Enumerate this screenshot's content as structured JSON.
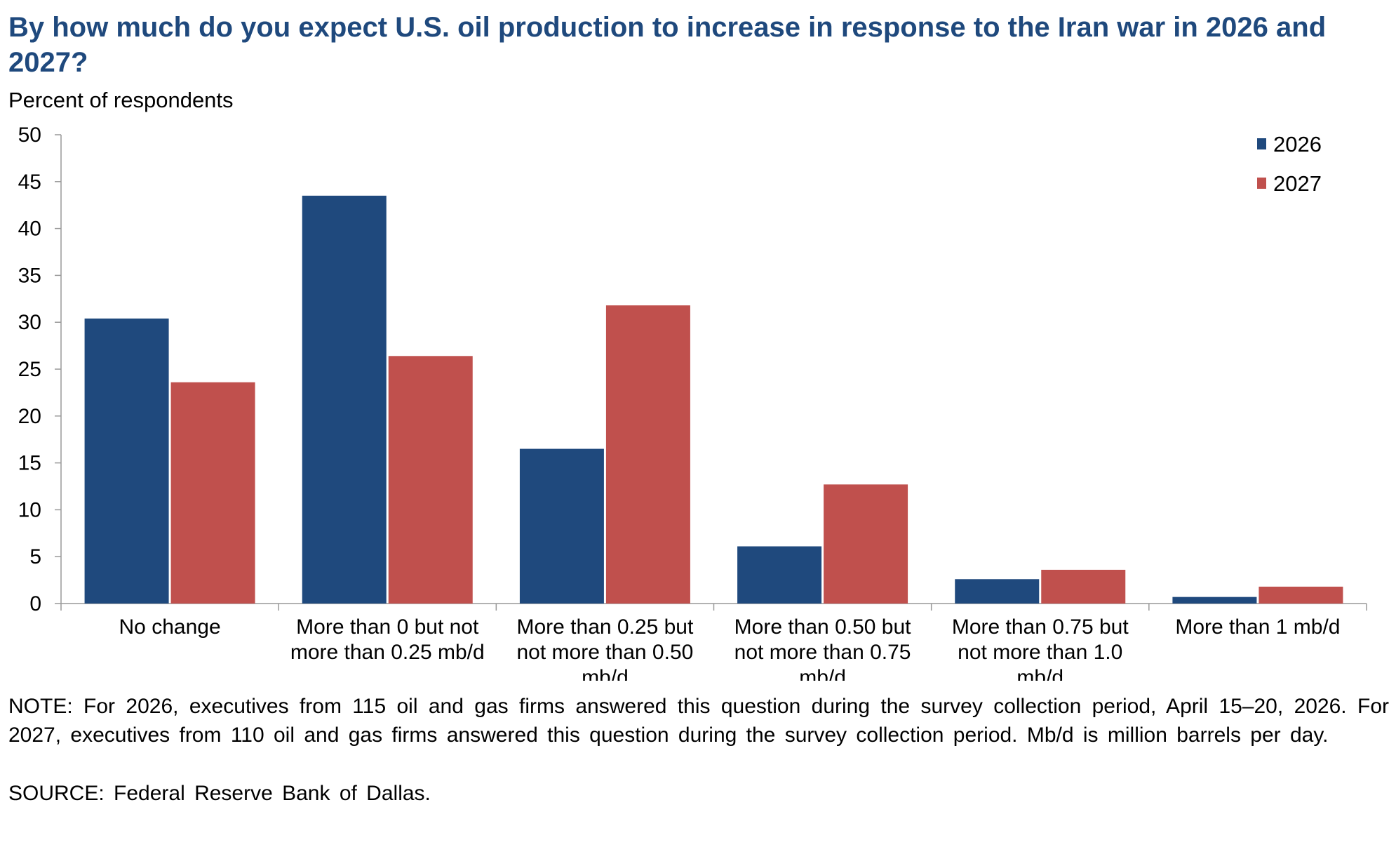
{
  "chart_data": {
    "type": "bar",
    "title": "By how much do you expect U.S. oil production to increase in response to the Iran war in 2026 and 2027?",
    "ylabel": "Percent of respondents",
    "xlabel": "",
    "ylim": [
      0,
      50
    ],
    "yticks": [
      0,
      5,
      10,
      15,
      20,
      25,
      30,
      35,
      40,
      45,
      50
    ],
    "grid": false,
    "legend_position": "top-right",
    "categories": [
      [
        "No change"
      ],
      [
        "More than 0 but not",
        "more than 0.25 mb/d"
      ],
      [
        "More than 0.25 but",
        "not more than 0.50",
        "mb/d"
      ],
      [
        "More than 0.50 but",
        "not more than 0.75",
        "mb/d"
      ],
      [
        "More than 0.75 but",
        "not more than 1.0",
        "mb/d"
      ],
      [
        "More than 1 mb/d"
      ]
    ],
    "series": [
      {
        "name": "2026",
        "color": "#1f497d",
        "values": [
          30.4,
          43.5,
          16.5,
          6.1,
          2.6,
          0.7
        ]
      },
      {
        "name": "2027",
        "color": "#c0504d",
        "values": [
          23.6,
          26.4,
          31.8,
          12.7,
          3.6,
          1.8
        ]
      }
    ]
  },
  "note": "NOTE: For 2026, executives from 115 oil and gas firms answered this question during the survey collection period, April 15–20, 2026. For 2027, executives from 110 oil and gas firms answered this question during the survey collection period. Mb/d is million barrels per day.",
  "source": "SOURCE: Federal Reserve Bank of Dallas.",
  "colors": {
    "title": "#1f497d",
    "axis": "#999999"
  }
}
